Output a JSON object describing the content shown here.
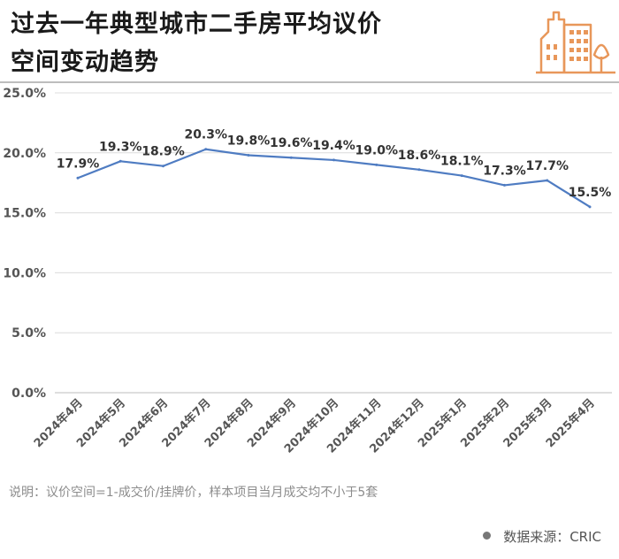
{
  "header": {
    "title_line1": "过去一年典型城市二手房平均议价",
    "title_line2": "空间变动趋势"
  },
  "logo": {
    "icon": "city-buildings-icon",
    "color": "#e8975a"
  },
  "colors": {
    "line": "#4f7cc2",
    "grid": "#dcdcdc",
    "tick": "#555555",
    "label": "#333333"
  },
  "chart_data": {
    "type": "line",
    "categories": [
      "2024年4月",
      "2024年5月",
      "2024年6月",
      "2024年7月",
      "2024年8月",
      "2024年9月",
      "2024年10月",
      "2024年11月",
      "2024年12月",
      "2025年1月",
      "2025年2月",
      "2025年3月",
      "2025年4月"
    ],
    "values": [
      17.9,
      19.3,
      18.9,
      20.3,
      19.8,
      19.6,
      19.4,
      19.0,
      18.6,
      18.1,
      17.3,
      17.7,
      15.5
    ],
    "data_labels": [
      "17.9%",
      "19.3%",
      "18.9%",
      "20.3%",
      "19.8%",
      "19.6%",
      "19.4%",
      "19.0%",
      "18.6%",
      "18.1%",
      "17.3%",
      "17.7%",
      "15.5%"
    ],
    "ylim": [
      0,
      25
    ],
    "yticks": [
      "0.0%",
      "5.0%",
      "10.0%",
      "15.0%",
      "20.0%",
      "25.0%"
    ],
    "grid": true,
    "legend": "none"
  },
  "footer": {
    "note": "说明：议价空间=1-成交价/挂牌价，样本项目当月成交均不小于5套",
    "source": "数据来源：CRIC"
  }
}
